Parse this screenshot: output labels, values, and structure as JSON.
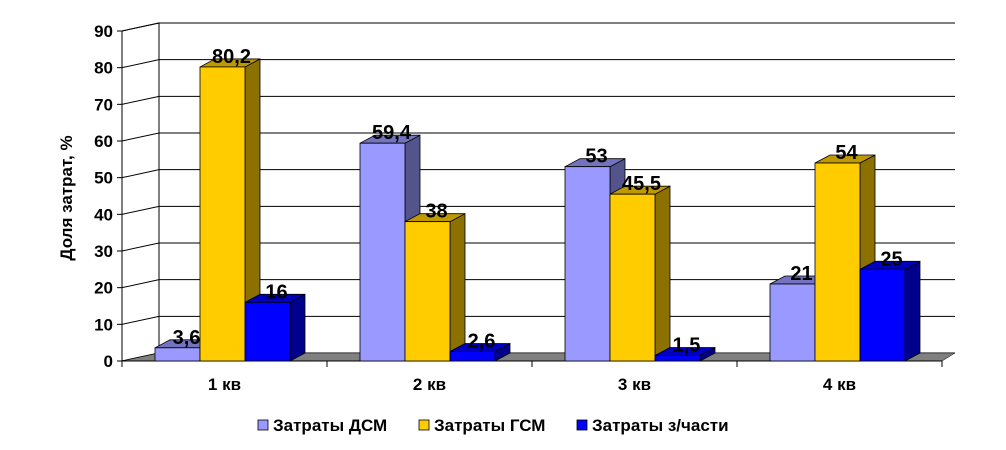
{
  "chart_data": {
    "type": "bar",
    "title": "",
    "xlabel": "",
    "ylabel": "Доля затрат, %",
    "ylim": [
      0,
      90
    ],
    "yticks": [
      "0",
      "10",
      "20",
      "30",
      "40",
      "50",
      "60",
      "70",
      "80",
      "90"
    ],
    "categories": [
      "1 кв",
      "2 кв",
      "3 кв",
      "4 кв"
    ],
    "series": [
      {
        "name": "Затраты ДСМ",
        "values": [
          3.6,
          59.4,
          53,
          21
        ],
        "labels": [
          "3,6",
          "59,4",
          "53",
          "21"
        ],
        "color": "#9999ff"
      },
      {
        "name": "Затраты ГСМ",
        "values": [
          80.2,
          38,
          45.5,
          54
        ],
        "labels": [
          "80,2",
          "38",
          "45,5",
          "54"
        ],
        "color": "#ffcc00"
      },
      {
        "name": "Затраты з/части",
        "values": [
          16,
          2.6,
          1.5,
          25
        ],
        "labels": [
          "16",
          "2,6",
          "1,5",
          "25"
        ],
        "color": "#0000ff"
      }
    ],
    "grid": true,
    "legend_position": "bottom"
  }
}
